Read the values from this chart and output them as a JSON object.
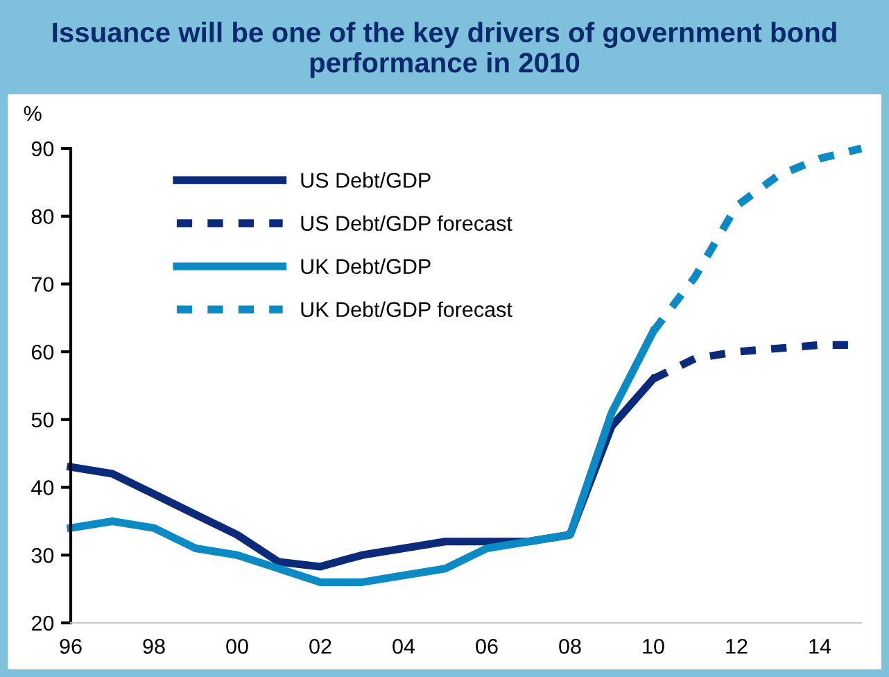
{
  "chart_data": {
    "type": "line",
    "title": "Issuance will be one of the key drivers of government bond performance in 2010",
    "ylabel": "%",
    "series": [
      {
        "name": "US Debt/GDP",
        "color": "#0b2a7a",
        "line_style": "solid",
        "x": [
          1996,
          1997,
          1998,
          1999,
          2000,
          2001,
          2002,
          2003,
          2004,
          2005,
          2006,
          2007,
          2008,
          2009,
          2010
        ],
        "values": [
          43,
          42,
          39,
          36,
          33,
          29,
          28.3,
          30,
          31,
          32,
          32,
          32,
          33,
          49,
          56
        ]
      },
      {
        "name": "US Debt/GDP forecast",
        "color": "#0b2a7a",
        "line_style": "dashed",
        "x": [
          2010,
          2011,
          2012,
          2013,
          2014,
          2015
        ],
        "values": [
          56,
          59,
          60,
          60.5,
          61,
          61
        ]
      },
      {
        "name": "UK Debt/GDP",
        "color": "#0b8ac4",
        "line_style": "solid",
        "x": [
          1996,
          1997,
          1998,
          1999,
          2000,
          2001,
          2002,
          2003,
          2004,
          2005,
          2006,
          2007,
          2008,
          2009,
          2010
        ],
        "values": [
          34,
          35,
          34,
          31,
          30,
          28,
          26,
          26,
          27,
          28,
          31,
          32,
          33,
          51,
          63
        ]
      },
      {
        "name": "UK Debt/GDP forecast",
        "color": "#0b8ac4",
        "line_style": "dashed",
        "x": [
          2010,
          2011,
          2012,
          2013,
          2014,
          2015
        ],
        "values": [
          63,
          71,
          81.5,
          86,
          88.5,
          90
        ]
      }
    ],
    "xticks": [
      {
        "value": 1996,
        "label": "96"
      },
      {
        "value": 1998,
        "label": "98"
      },
      {
        "value": 2000,
        "label": "00"
      },
      {
        "value": 2002,
        "label": "02"
      },
      {
        "value": 2004,
        "label": "04"
      },
      {
        "value": 2006,
        "label": "06"
      },
      {
        "value": 2008,
        "label": "08"
      },
      {
        "value": 2010,
        "label": "10"
      },
      {
        "value": 2012,
        "label": "12"
      },
      {
        "value": 2014,
        "label": "14"
      }
    ],
    "xlim": [
      1996,
      2015
    ],
    "ylim": [
      20,
      90
    ],
    "yticks": [
      20,
      30,
      40,
      50,
      60,
      70,
      80,
      90
    ],
    "legend": "top left",
    "grid": false,
    "marker": "none"
  }
}
